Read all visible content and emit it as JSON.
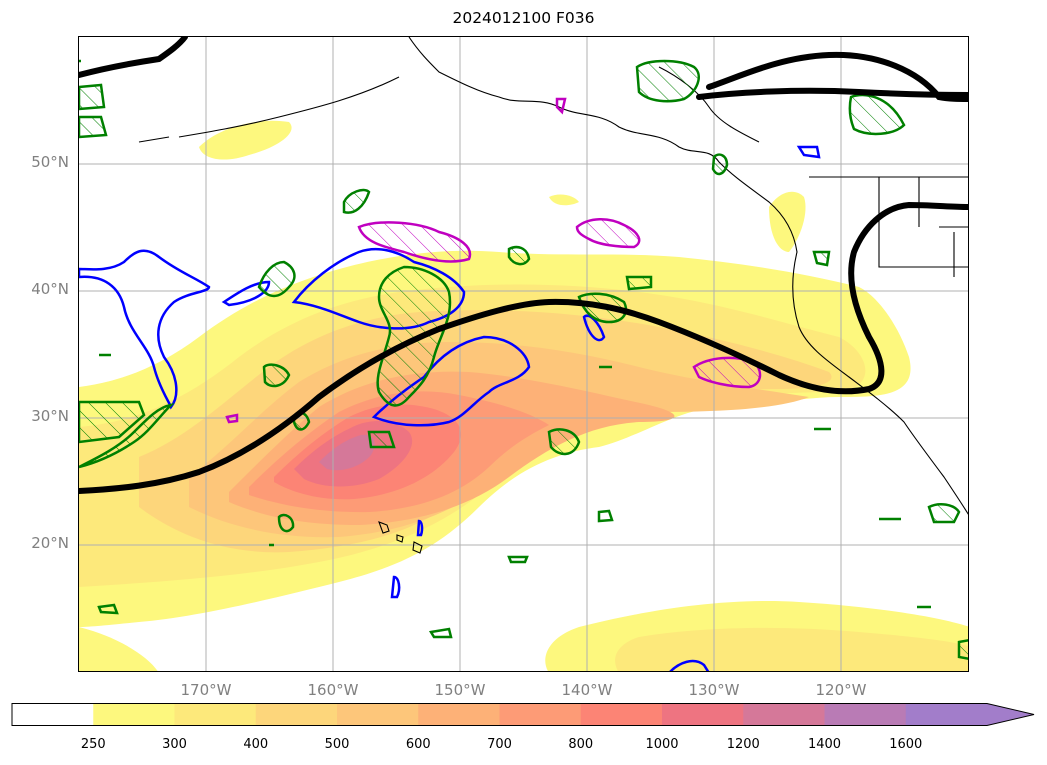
{
  "title": "2024012100 F036",
  "latitude_labels": [
    "50°N",
    "40°N",
    "30°N",
    "20°N"
  ],
  "longitude_labels": [
    "170°W",
    "160°W",
    "150°W",
    "140°W",
    "130°W",
    "120°W"
  ],
  "colorbar": {
    "ticks": [
      "250",
      "300",
      "400",
      "500",
      "600",
      "700",
      "800",
      "1000",
      "1200",
      "1400",
      "1600"
    ],
    "colors": [
      "#ffffff",
      "#fdf87e",
      "#fde97b",
      "#fdd67b",
      "#fdc67a",
      "#fdb177",
      "#fd9b76",
      "#fc8475",
      "#ee7481",
      "#d57899",
      "#b97bb5",
      "#a27dca"
    ],
    "extend": "max"
  },
  "legend_colors": {
    "jet_axis": "#000000",
    "blue_contour": "#0000ff",
    "green_contour": "#008000",
    "magenta_contour": "#c000c0"
  }
}
